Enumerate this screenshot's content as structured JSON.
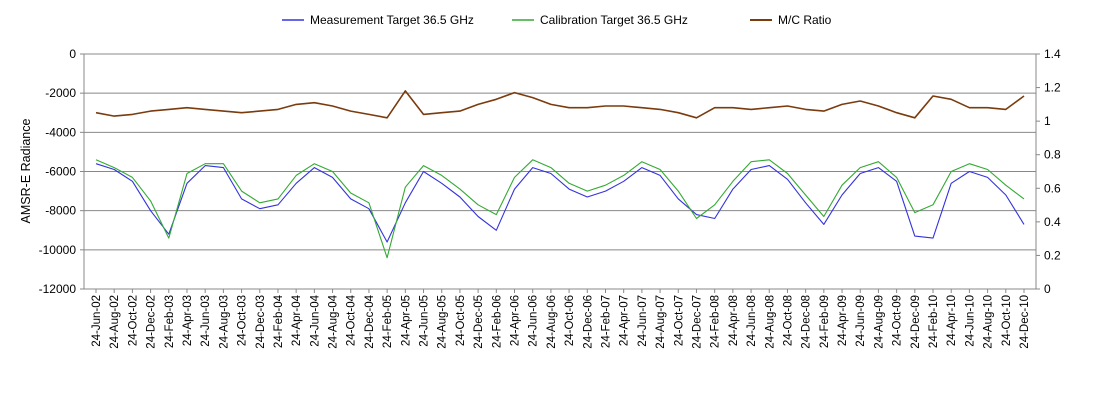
{
  "chart_data": {
    "type": "line",
    "title": "",
    "xlabel": "",
    "ylabel": "AMSR-E Radiance",
    "y2label": "",
    "grid": "horizontal",
    "legend_position": "top",
    "ylim": [
      -12000,
      0
    ],
    "y_ticks": [
      0,
      -2000,
      -4000,
      -6000,
      -8000,
      -10000,
      -12000
    ],
    "y2lim": [
      0,
      1.4
    ],
    "y2_ticks": [
      0,
      0.2,
      0.4,
      0.6,
      0.8,
      1,
      1.2,
      1.4
    ],
    "x_tick_labels": [
      "24-Jun-02",
      "24-Aug-02",
      "24-Oct-02",
      "24-Dec-02",
      "24-Feb-03",
      "24-Apr-03",
      "24-Jun-03",
      "24-Aug-03",
      "24-Oct-03",
      "24-Dec-03",
      "24-Feb-04",
      "24-Apr-04",
      "24-Jun-04",
      "24-Aug-04",
      "24-Oct-04",
      "24-Dec-04",
      "24-Feb-05",
      "24-Apr-05",
      "24-Jun-05",
      "24-Aug-05",
      "24-Oct-05",
      "24-Dec-05",
      "24-Feb-06",
      "24-Apr-06",
      "24-Jun-06",
      "24-Aug-06",
      "24-Oct-06",
      "24-Dec-06",
      "24-Feb-07",
      "24-Apr-07",
      "24-Jun-07",
      "24-Aug-07",
      "24-Oct-07",
      "24-Dec-07",
      "24-Feb-08",
      "24-Apr-08",
      "24-Jun-08",
      "24-Aug-08",
      "24-Oct-08",
      "24-Dec-08",
      "24-Feb-09",
      "24-Apr-09",
      "24-Jun-09",
      "24-Aug-09",
      "24-Oct-09",
      "24-Dec-09",
      "24-Feb-10",
      "24-Apr-10",
      "24-Jun-10",
      "24-Aug-10",
      "24-Oct-10",
      "24-Dec-10"
    ],
    "x": [
      "24-Jun-02",
      "24-Aug-02",
      "24-Oct-02",
      "24-Dec-02",
      "24-Feb-03",
      "24-Apr-03",
      "24-Jun-03",
      "24-Aug-03",
      "24-Oct-03",
      "24-Dec-03",
      "24-Feb-04",
      "24-Apr-04",
      "24-Jun-04",
      "24-Aug-04",
      "24-Oct-04",
      "24-Dec-04",
      "24-Feb-05",
      "24-Apr-05",
      "24-Jun-05",
      "24-Aug-05",
      "24-Oct-05",
      "24-Dec-05",
      "24-Feb-06",
      "24-Apr-06",
      "24-Jun-06",
      "24-Aug-06",
      "24-Oct-06",
      "24-Dec-06",
      "24-Feb-07",
      "24-Apr-07",
      "24-Jun-07",
      "24-Aug-07",
      "24-Oct-07",
      "24-Dec-07",
      "24-Feb-08",
      "24-Apr-08",
      "24-Jun-08",
      "24-Aug-08",
      "24-Oct-08",
      "24-Dec-08",
      "24-Feb-09",
      "24-Apr-09",
      "24-Jun-09",
      "24-Aug-09",
      "24-Oct-09",
      "24-Dec-09",
      "24-Feb-10",
      "24-Apr-10",
      "24-Jun-10",
      "24-Aug-10",
      "24-Oct-10",
      "24-Dec-10"
    ],
    "series": [
      {
        "name": "Measurement Target 36.5 GHz",
        "axis": "left",
        "color": "#3333dd",
        "values": [
          -5600,
          -5900,
          -6500,
          -8000,
          -9200,
          -6600,
          -5700,
          -5800,
          -7400,
          -7900,
          -7700,
          -6600,
          -5800,
          -6300,
          -7400,
          -7900,
          -9600,
          -7600,
          -6000,
          -6600,
          -7300,
          -8300,
          -9000,
          -6900,
          -5800,
          -6100,
          -6900,
          -7300,
          -7000,
          -6500,
          -5800,
          -6200,
          -7400,
          -8200,
          -8400,
          -6900,
          -5900,
          -5700,
          -6400,
          -7600,
          -8700,
          -7200,
          -6100,
          -5800,
          -6500,
          -9300,
          -9400,
          -6600,
          -6000,
          -6300,
          -7200,
          -8700
        ]
      },
      {
        "name": "Calibration Target 36.5 GHz",
        "axis": "left",
        "color": "#33aa33",
        "values": [
          -5400,
          -5800,
          -6300,
          -7500,
          -9400,
          -6100,
          -5600,
          -5600,
          -7000,
          -7600,
          -7400,
          -6200,
          -5600,
          -6000,
          -7100,
          -7600,
          -10400,
          -6800,
          -5700,
          -6200,
          -6900,
          -7700,
          -8200,
          -6300,
          -5400,
          -5800,
          -6600,
          -7000,
          -6700,
          -6200,
          -5500,
          -5900,
          -7000,
          -8400,
          -7700,
          -6500,
          -5500,
          -5400,
          -6100,
          -7200,
          -8300,
          -6700,
          -5800,
          -5500,
          -6300,
          -8100,
          -7700,
          -6000,
          -5600,
          -5900,
          -6700,
          -7400
        ]
      },
      {
        "name": "M/C Ratio",
        "axis": "right",
        "color": "#7a3b0e",
        "values": [
          1.05,
          1.03,
          1.04,
          1.06,
          1.07,
          1.08,
          1.07,
          1.06,
          1.05,
          1.06,
          1.07,
          1.1,
          1.11,
          1.09,
          1.06,
          1.04,
          1.02,
          1.18,
          1.04,
          1.05,
          1.06,
          1.1,
          1.13,
          1.17,
          1.14,
          1.1,
          1.08,
          1.08,
          1.09,
          1.09,
          1.08,
          1.07,
          1.05,
          1.02,
          1.08,
          1.08,
          1.07,
          1.08,
          1.09,
          1.07,
          1.06,
          1.1,
          1.12,
          1.09,
          1.05,
          1.02,
          1.15,
          1.13,
          1.08,
          1.08,
          1.07,
          1.15
        ]
      }
    ]
  }
}
